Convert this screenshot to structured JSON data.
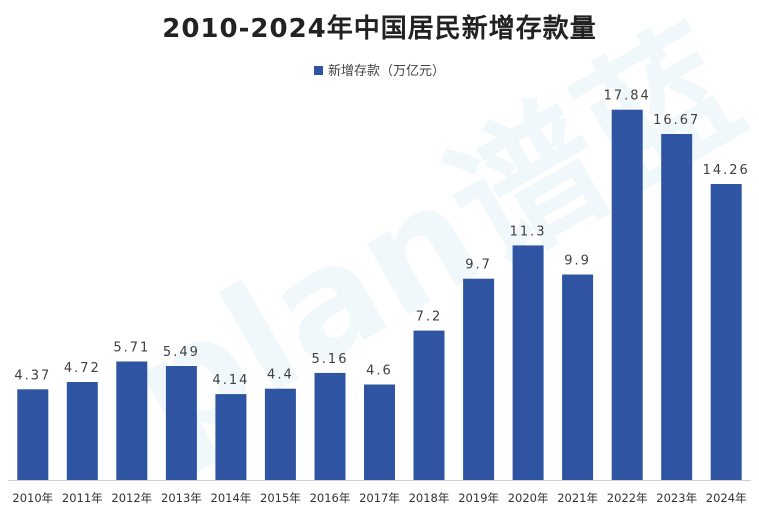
{
  "chart_data": {
    "type": "bar",
    "title": "2010-2024年中国居民新增存款量",
    "legend": "新增存款（万亿元）",
    "categories": [
      "2010年",
      "2011年",
      "2012年",
      "2013年",
      "2014年",
      "2015年",
      "2016年",
      "2017年",
      "2018年",
      "2019年",
      "2020年",
      "2021年",
      "2022年",
      "2023年",
      "2024年"
    ],
    "values": [
      4.37,
      4.72,
      5.71,
      5.49,
      4.14,
      4.4,
      5.16,
      4.6,
      7.2,
      9.7,
      11.3,
      9.9,
      17.84,
      16.67,
      14.26
    ],
    "value_labels": [
      "4.37",
      "4.72",
      "5.71",
      "5.49",
      "4.14",
      "4.4",
      "5.16",
      "4.6",
      "7.2",
      "9.7",
      "11.3",
      "9.9",
      "17.84",
      "16.67",
      "14.26"
    ],
    "ylim": [
      0,
      18.5
    ],
    "bar_color": "#2e54a2",
    "xlabel": "",
    "ylabel": ""
  },
  "watermark": "plan谱蓝"
}
